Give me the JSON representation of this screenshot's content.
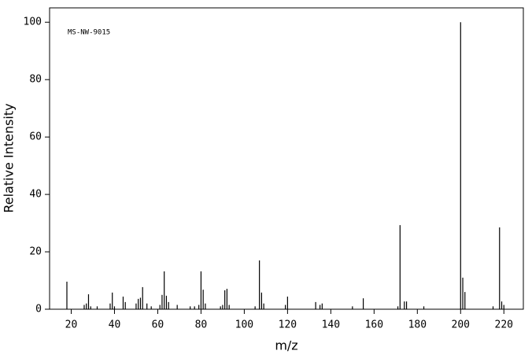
{
  "chart_data": {
    "type": "bar",
    "annotation": "MS-NW-9015",
    "x_label": "m/z",
    "y_label": "Relative Intensity",
    "x": [
      18,
      26,
      27,
      28,
      29,
      32,
      38,
      39,
      40,
      44,
      45,
      50,
      51,
      52,
      53,
      55,
      57,
      61,
      62,
      63,
      64,
      65,
      69,
      75,
      77,
      79,
      80,
      81,
      82,
      89,
      90,
      91,
      92,
      93,
      105,
      107,
      108,
      109,
      119,
      120,
      133,
      135,
      136,
      150,
      155,
      171,
      172,
      174,
      175,
      183,
      200,
      201,
      202,
      215,
      218,
      219,
      220
    ],
    "values": [
      9.6,
      1.5,
      2,
      5.2,
      1,
      1,
      2,
      5.8,
      1,
      4.4,
      2.5,
      2,
      3.6,
      4,
      7.7,
      2,
      1,
      1.5,
      5,
      13.2,
      4.7,
      2.5,
      1.5,
      1,
      1,
      1.5,
      13.2,
      6.8,
      2,
      1,
      1.5,
      6.6,
      7.1,
      1.5,
      1,
      17,
      5.8,
      2,
      1.5,
      4.4,
      2.5,
      1.5,
      2,
      1,
      3.8,
      1,
      29.3,
      2.7,
      2.7,
      1,
      100,
      11,
      6,
      1,
      28.5,
      2.7,
      1.5
    ],
    "color": "#000000",
    "xlim": [
      10,
      229
    ],
    "ylim": [
      0,
      105
    ],
    "xticks": [
      20,
      40,
      60,
      80,
      100,
      120,
      140,
      160,
      180,
      200,
      220
    ],
    "yticks": [
      0,
      20,
      40,
      60,
      80,
      100
    ]
  }
}
